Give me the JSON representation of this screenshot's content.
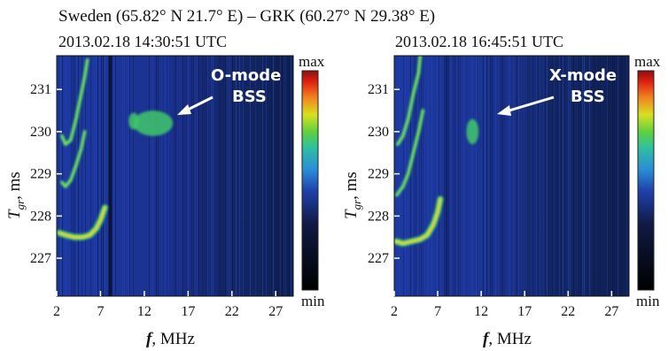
{
  "header": {
    "title": "Sweden (65.82° N 21.7° E) – GRK (60.27° N 29.38° E)",
    "left_time": "2013.02.18    14:30:51 UTC",
    "right_time": "2013.02.18    16:45:51  UTC"
  },
  "chart_data": [
    {
      "type": "heatmap",
      "time_label": "2013.02.18 14:30:51 UTC",
      "annotation": [
        "O-mode",
        "BSS"
      ],
      "xlabel": "f, MHz",
      "ylabel": "Tgr, ms",
      "x_ticks": [
        2,
        7,
        12,
        17,
        22,
        27
      ],
      "y_ticks": [
        227,
        228,
        229,
        230,
        231
      ],
      "xlim": [
        2,
        29
      ],
      "ylim": [
        226.1,
        231.8
      ],
      "colorbar": {
        "max_label": "max",
        "min_label": "min"
      },
      "traces": [
        {
          "name": "",
          "x": [
            2.3,
            3.0,
            4.0,
            5.0,
            5.8,
            6.5,
            7.0,
            7.5
          ],
          "y": [
            227.6,
            227.55,
            227.5,
            227.5,
            227.55,
            227.7,
            227.9,
            228.2
          ]
        },
        {
          "name": "",
          "x": [
            2.6,
            3.0,
            3.6,
            4.2,
            4.8,
            5.2
          ],
          "y": [
            228.8,
            228.7,
            228.85,
            229.2,
            229.6,
            230.0
          ]
        },
        {
          "name": "",
          "x": [
            2.6,
            3.0,
            3.6,
            4.2,
            4.8,
            5.2,
            5.5
          ],
          "y": [
            229.9,
            229.7,
            229.8,
            230.3,
            230.9,
            231.3,
            231.7
          ]
        }
      ],
      "patches": [
        {
          "x": 13.0,
          "y": 230.2,
          "w": 4.5,
          "h": 0.6
        },
        {
          "x": 10.8,
          "y": 230.25,
          "w": 1.2,
          "h": 0.4
        }
      ]
    },
    {
      "type": "heatmap",
      "time_label": "2013.02.18 16:45:51 UTC",
      "annotation": [
        "X-mode",
        "BSS"
      ],
      "xlabel": "f, MHz",
      "ylabel": "Tgr, ms",
      "x_ticks": [
        2,
        7,
        12,
        17,
        22,
        27
      ],
      "y_ticks": [
        227,
        228,
        229,
        230,
        231
      ],
      "xlim": [
        2,
        29
      ],
      "ylim": [
        226.1,
        231.8
      ],
      "colorbar": {
        "max_label": "max",
        "min_label": "min"
      },
      "traces": [
        {
          "name": "",
          "x": [
            2.2,
            3.0,
            4.0,
            5.0,
            5.8,
            6.5,
            7.0,
            7.3
          ],
          "y": [
            227.4,
            227.35,
            227.4,
            227.45,
            227.55,
            227.8,
            228.1,
            228.4
          ]
        },
        {
          "name": "",
          "x": [
            2.3,
            3.0,
            3.6,
            4.2,
            4.8,
            5.3
          ],
          "y": [
            228.5,
            228.7,
            229.0,
            229.5,
            230.0,
            230.5
          ]
        },
        {
          "name": "",
          "x": [
            2.4,
            3.0,
            3.6,
            4.2,
            4.8,
            5.0
          ],
          "y": [
            229.7,
            229.9,
            230.3,
            230.9,
            231.4,
            231.8
          ]
        }
      ],
      "patches": [
        {
          "x": 11.0,
          "y": 230.0,
          "w": 1.4,
          "h": 0.6
        }
      ]
    }
  ]
}
